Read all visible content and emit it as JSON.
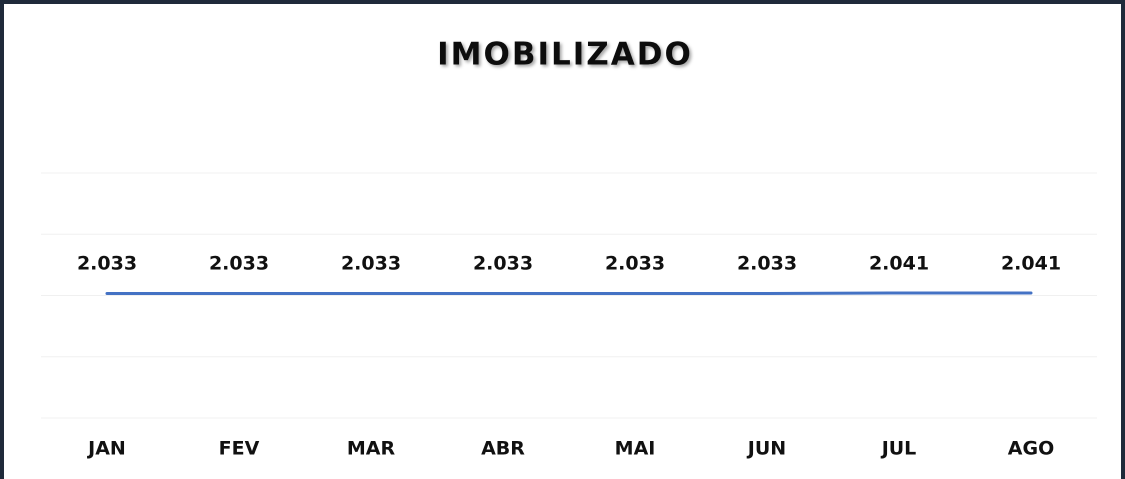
{
  "chart_data": {
    "type": "line",
    "title": "IMOBILIZADO",
    "categories": [
      "JAN",
      "FEV",
      "MAR",
      "ABR",
      "MAI",
      "JUN",
      "JUL",
      "AGO"
    ],
    "values": [
      2033,
      2033,
      2033,
      2033,
      2033,
      2033,
      2041,
      2041
    ],
    "value_labels": [
      "2.033",
      "2.033",
      "2.033",
      "2.033",
      "2.033",
      "2.033",
      "2.041",
      "2.041"
    ],
    "color": "#4472c4",
    "ylim": [
      0,
      4000
    ],
    "yticks": [
      0,
      1000,
      2000,
      3000,
      4000
    ],
    "grid": true
  }
}
